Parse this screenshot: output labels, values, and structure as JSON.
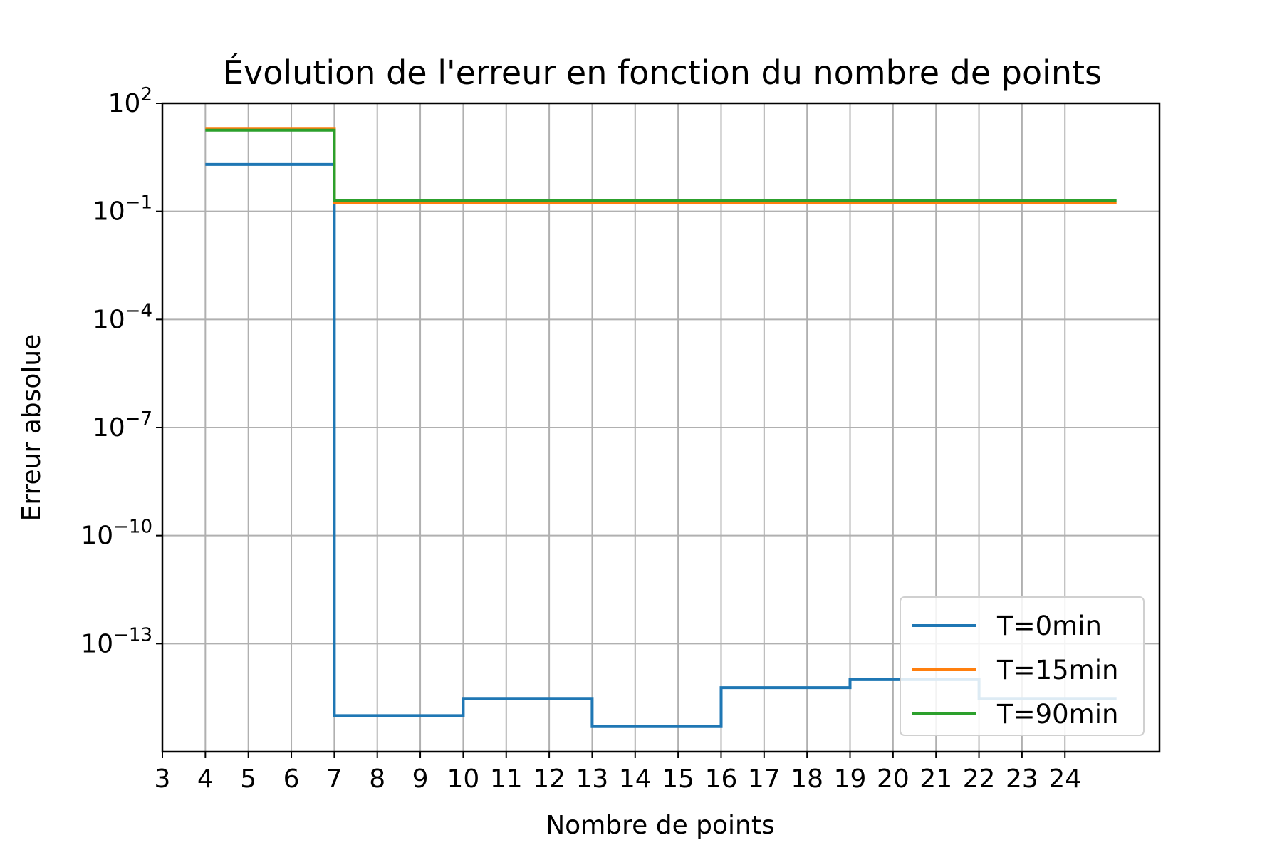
{
  "chart_data": {
    "type": "line",
    "drawstyle": "steps-post",
    "title": "Évolution de l'erreur en fonction du nombre de points",
    "xlabel": "Nombre de points",
    "ylabel": "Erreur absolue",
    "xlim": [
      3,
      26.2
    ],
    "xticks": [
      3,
      4,
      5,
      6,
      7,
      8,
      9,
      10,
      11,
      12,
      13,
      14,
      15,
      16,
      17,
      18,
      19,
      20,
      21,
      22,
      23,
      24
    ],
    "yscale": "log",
    "ylim": [
      1e-16,
      100
    ],
    "yticks": [
      {
        "base": "10",
        "exp": "2"
      },
      {
        "base": "10",
        "exp": "−1"
      },
      {
        "base": "10",
        "exp": "−4"
      },
      {
        "base": "10",
        "exp": "−7"
      },
      {
        "base": "10",
        "exp": "−10"
      },
      {
        "base": "10",
        "exp": "−13"
      }
    ],
    "grid": true,
    "legend": "lower-right",
    "series": [
      {
        "name": "T=0min",
        "color": "#1f77b4",
        "x": [
          4,
          7,
          10,
          13,
          16,
          19,
          22,
          25.2
        ],
        "y": [
          2.0,
          1e-15,
          3e-15,
          5e-16,
          6e-15,
          1e-14,
          3e-15,
          3e-15
        ]
      },
      {
        "name": "T=15min",
        "color": "#ff7f0e",
        "x": [
          4,
          7,
          25.2
        ],
        "y": [
          20.0,
          0.17,
          0.17
        ]
      },
      {
        "name": "T=90min",
        "color": "#2ca02c",
        "x": [
          4,
          7,
          25.2
        ],
        "y": [
          18.0,
          0.2,
          0.2
        ]
      }
    ]
  }
}
